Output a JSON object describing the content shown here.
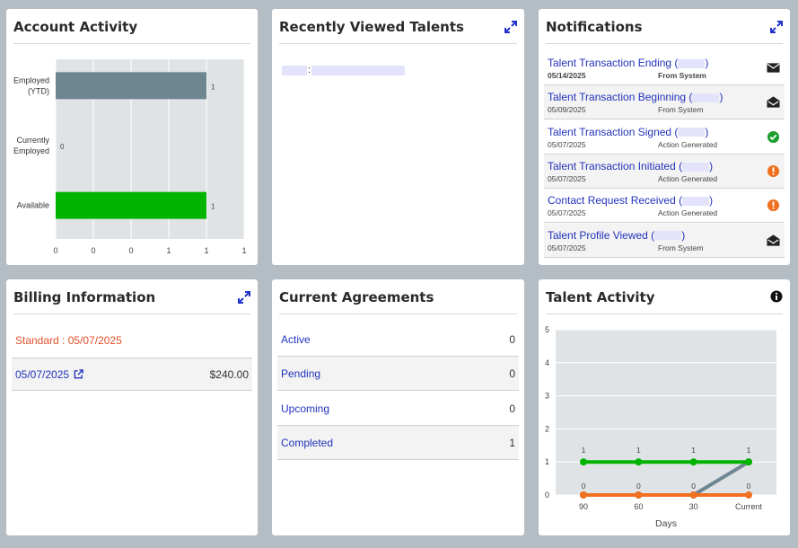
{
  "account_activity": {
    "title": "Account Activity",
    "chart_data": {
      "type": "bar",
      "orientation": "horizontal",
      "categories": [
        "Employed (YTD)",
        "Currently Employed",
        "Available"
      ],
      "category_lines": [
        [
          "Employed",
          "(YTD)"
        ],
        [
          "Currently",
          "Employed"
        ],
        [
          "Available"
        ]
      ],
      "values": [
        1,
        0,
        1
      ],
      "data_labels": [
        "1",
        "0",
        "1"
      ],
      "bar_colors": [
        "#6e8592",
        "#6e8592",
        "#00b400"
      ],
      "xtick_labels": [
        "0",
        "0",
        "0",
        "1",
        "1",
        "1"
      ],
      "xlim": [
        0,
        1.25
      ],
      "grid": true
    }
  },
  "recently_viewed": {
    "title": "Recently Viewed Talents",
    "separator": ":"
  },
  "notifications": {
    "title": "Notifications",
    "items": [
      {
        "title": "Talent Transaction Ending (",
        "close": ")",
        "date": "05/14/2025",
        "source": "From System",
        "icon": "envelope-closed-icon",
        "bold": true
      },
      {
        "title": "Talent Transaction Beginning (",
        "close": ")",
        "date": "05/09/2025",
        "source": "From System",
        "icon": "envelope-open-icon",
        "bold": false
      },
      {
        "title": "Talent Transaction Signed (",
        "close": ")",
        "date": "05/07/2025",
        "source": "Action Generated",
        "icon": "check-circle-icon",
        "bold": false
      },
      {
        "title": "Talent Transaction Initiated (",
        "close": ")",
        "date": "05/07/2025",
        "source": "Action Generated",
        "icon": "alert-circle-icon",
        "bold": false
      },
      {
        "title": "Contact Request Received (",
        "close": ")",
        "date": "05/07/2025",
        "source": "Action Generated",
        "icon": "alert-circle-icon",
        "bold": false
      },
      {
        "title": "Talent Profile Viewed (",
        "close": ")",
        "date": "05/07/2025",
        "source": "From System",
        "icon": "envelope-open-icon",
        "bold": false
      }
    ],
    "colors": {
      "check": "#1e9e2e",
      "alert": "#f07020",
      "envelope": "#222222"
    }
  },
  "billing": {
    "title": "Billing Information",
    "plan": "Standard : 05/07/2025",
    "plan_color": "#e0502a",
    "row": {
      "date": "05/07/2025",
      "amount": "$240.00"
    }
  },
  "agreements": {
    "title": "Current Agreements",
    "rows": [
      {
        "label": "Active",
        "value": "0"
      },
      {
        "label": "Pending",
        "value": "0"
      },
      {
        "label": "Upcoming",
        "value": "0"
      },
      {
        "label": "Completed",
        "value": "1"
      }
    ]
  },
  "talent_activity": {
    "title": "Talent Activity",
    "chart_data": {
      "type": "line",
      "categories": [
        "90",
        "60",
        "30",
        "Current"
      ],
      "xlabel": "Days",
      "ylim": [
        0,
        5
      ],
      "yticks": [
        "0",
        "1",
        "2",
        "3",
        "4",
        "5"
      ],
      "series": [
        {
          "values": [
            1,
            1,
            1,
            1
          ],
          "color": "#00b400"
        },
        {
          "values": [
            0,
            0,
            0,
            1
          ],
          "color": "#6e8592"
        },
        {
          "values": [
            0,
            0,
            0,
            0
          ],
          "color": "#f07020"
        }
      ],
      "top_labels": [
        "1",
        "1",
        "1",
        "1"
      ],
      "bottom_labels": [
        "0",
        "0",
        "0",
        "0"
      ],
      "grid": true
    }
  }
}
